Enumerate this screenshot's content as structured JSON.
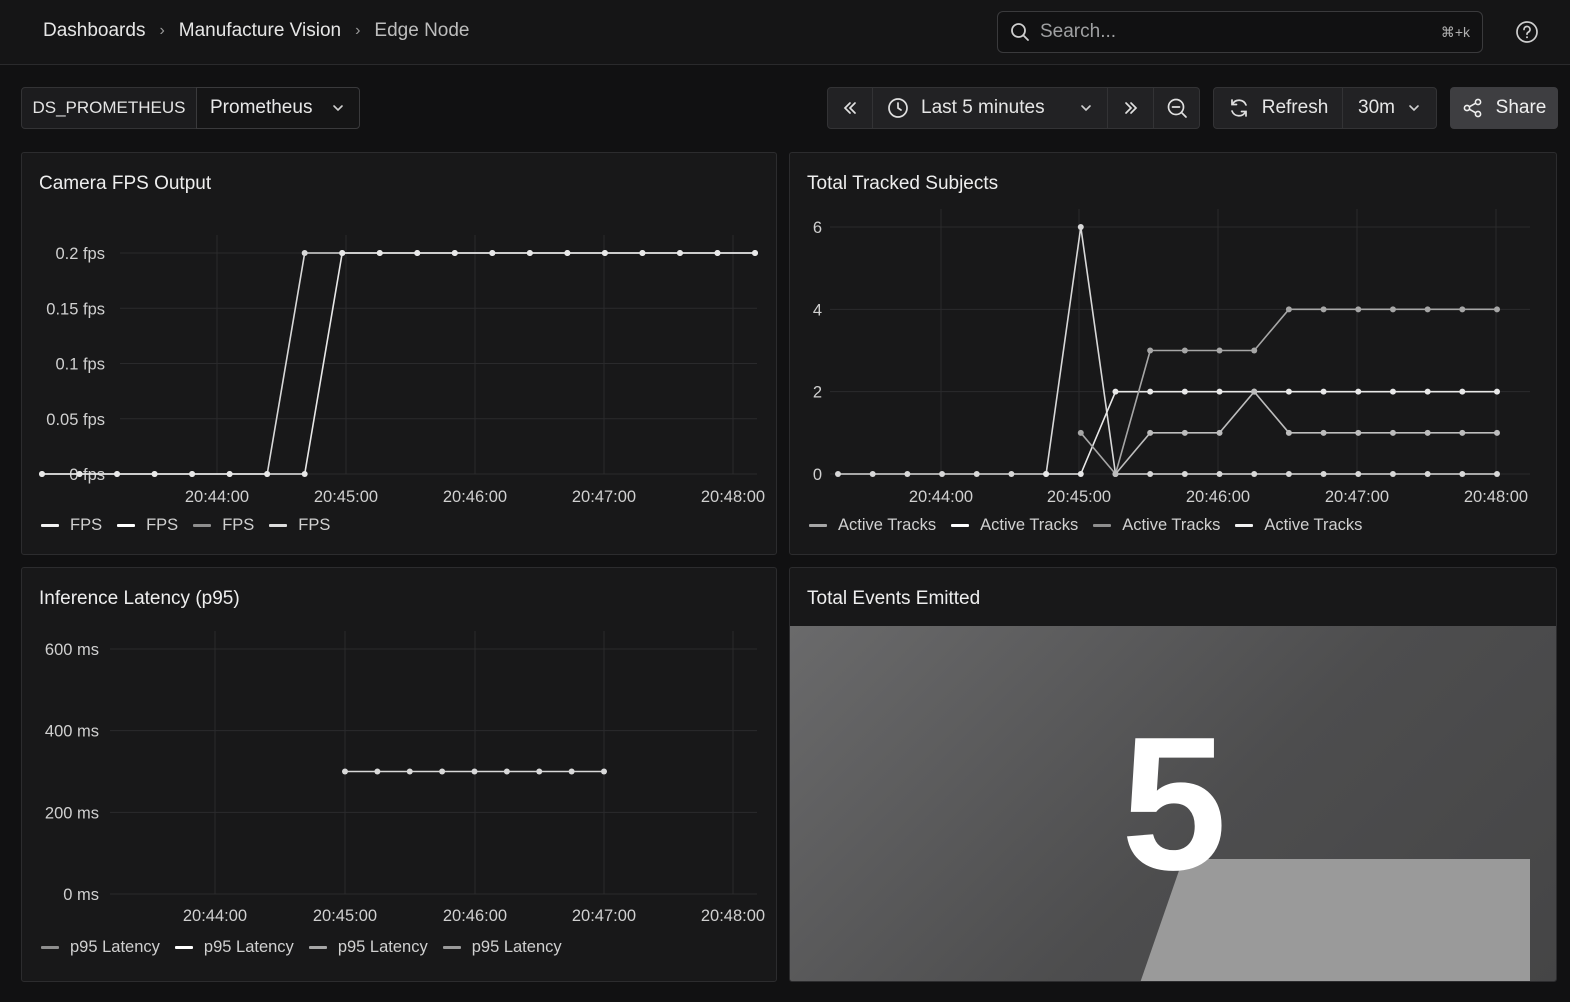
{
  "breadcrumb": {
    "items": [
      "Dashboards",
      "Manufacture Vision",
      "Edge Node"
    ]
  },
  "search": {
    "placeholder": "Search...",
    "shortcut": "⌘+k"
  },
  "toolbar": {
    "variable_name": "DS_PROMETHEUS",
    "variable_value": "Prometheus",
    "time_range": "Last 5 minutes",
    "refresh_label": "Refresh",
    "refresh_interval": "30m",
    "share_label": "Share"
  },
  "panels": {
    "fps": {
      "title": "Camera FPS Output",
      "legend": [
        "FPS",
        "FPS",
        "FPS",
        "FPS"
      ]
    },
    "tracks": {
      "title": "Total Tracked Subjects",
      "legend": [
        "Active Tracks",
        "Active Tracks",
        "Active Tracks",
        "Active Tracks"
      ]
    },
    "latency": {
      "title": "Inference Latency (p95)",
      "legend": [
        "p95 Latency",
        "p95 Latency",
        "p95 Latency",
        "p95 Latency"
      ]
    },
    "events": {
      "title": "Total Events Emitted",
      "value": "5"
    }
  },
  "colors": {
    "series": [
      "#8e8e8e",
      "#f2f2f2",
      "#a6a6a6",
      "#dcdcdc"
    ],
    "grid": "#2a2a2c",
    "axis_text": "#d0d0d0"
  },
  "chart_data": [
    {
      "type": "line",
      "title": "Camera FPS Output",
      "x": [
        "20:43:15",
        "20:43:30",
        "20:43:45",
        "20:44:00",
        "20:44:15",
        "20:44:30",
        "20:44:45",
        "20:45:00",
        "20:45:15",
        "20:45:30",
        "20:45:45",
        "20:46:00",
        "20:46:15",
        "20:46:30",
        "20:46:45",
        "20:47:00",
        "20:47:15",
        "20:47:30",
        "20:47:45",
        "20:48:00"
      ],
      "xticks": [
        "20:44:00",
        "20:45:00",
        "20:46:00",
        "20:47:00",
        "20:48:00"
      ],
      "yticks": [
        "0 fps",
        "0.05 fps",
        "0.1 fps",
        "0.15 fps",
        "0.2 fps"
      ],
      "ylim": [
        0,
        0.2
      ],
      "series": [
        {
          "values": [
            0,
            0,
            0,
            0,
            0,
            0,
            0,
            0.2,
            0.2,
            0.2,
            0.2,
            0.2,
            0.2,
            0.2,
            0.2,
            0.2,
            0.2,
            0.2,
            0.2,
            0.2
          ]
        },
        {
          "values": [
            0,
            0,
            0,
            0,
            0,
            0,
            0,
            0,
            0.2,
            0.2,
            0.2,
            0.2,
            0.2,
            0.2,
            0.2,
            0.2,
            0.2,
            0.2,
            0.2,
            0.2
          ]
        }
      ]
    },
    {
      "type": "line",
      "title": "Total Tracked Subjects",
      "x": [
        "20:43:15",
        "20:43:30",
        "20:43:45",
        "20:44:00",
        "20:44:15",
        "20:44:30",
        "20:44:45",
        "20:45:00",
        "20:45:15",
        "20:45:30",
        "20:45:45",
        "20:46:00",
        "20:46:15",
        "20:46:30",
        "20:46:45",
        "20:47:00",
        "20:47:15",
        "20:47:30",
        "20:47:45",
        "20:48:00"
      ],
      "xticks": [
        "20:44:00",
        "20:45:00",
        "20:46:00",
        "20:47:00",
        "20:48:00"
      ],
      "yticks": [
        "0",
        "2",
        "4",
        "6"
      ],
      "ylim": [
        0,
        6.5
      ],
      "series": [
        {
          "values": [
            0,
            0,
            0,
            0,
            0,
            0,
            0,
            6,
            0,
            0,
            0,
            0,
            0,
            0,
            0,
            0,
            0,
            0,
            0,
            0
          ]
        },
        {
          "values": [
            null,
            null,
            null,
            null,
            null,
            null,
            0,
            0,
            2,
            2,
            2,
            2,
            2,
            2,
            2,
            2,
            2,
            2,
            2,
            2
          ]
        },
        {
          "values": [
            null,
            null,
            null,
            null,
            null,
            null,
            null,
            1,
            0,
            3,
            3,
            3,
            3,
            4,
            4,
            4,
            4,
            4,
            4,
            4
          ]
        },
        {
          "values": [
            null,
            null,
            null,
            null,
            null,
            null,
            null,
            null,
            0,
            1,
            1,
            1,
            2,
            1,
            1,
            1,
            1,
            1,
            1,
            1
          ]
        }
      ]
    },
    {
      "type": "line",
      "title": "Inference Latency (p95)",
      "x": [
        "20:45:00",
        "20:45:15",
        "20:45:30",
        "20:45:45",
        "20:46:00",
        "20:46:15",
        "20:46:30",
        "20:46:45",
        "20:47:00"
      ],
      "xticks": [
        "20:44:00",
        "20:45:00",
        "20:46:00",
        "20:47:00",
        "20:48:00"
      ],
      "yticks": [
        "0 ms",
        "200 ms",
        "400 ms",
        "600 ms"
      ],
      "ylim": [
        0,
        600
      ],
      "series": [
        {
          "values": [
            300,
            300,
            300,
            300,
            300,
            300,
            300,
            300,
            300
          ]
        }
      ]
    }
  ]
}
